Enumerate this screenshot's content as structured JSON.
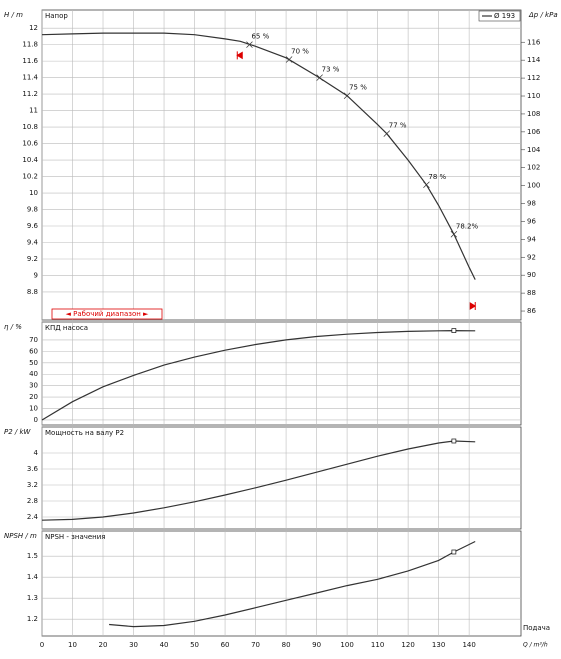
{
  "chart_data": [
    {
      "type": "line",
      "title": "Напор",
      "ylabel": "H / m",
      "y2label": "Δp / kPa",
      "x": [
        0,
        10,
        20,
        30,
        40,
        50,
        60,
        65,
        70,
        80,
        90,
        100,
        110,
        113,
        120,
        126,
        130,
        135,
        140,
        142
      ],
      "series": [
        {
          "name": "Ø 193",
          "color": "#333333",
          "values": [
            11.92,
            11.93,
            11.94,
            11.94,
            11.94,
            11.92,
            11.87,
            11.84,
            11.78,
            11.64,
            11.42,
            11.18,
            10.83,
            10.72,
            10.4,
            10.1,
            9.85,
            9.5,
            9.1,
            8.95
          ]
        }
      ],
      "xlim": [
        0,
        157
      ],
      "xticks": [
        0,
        10,
        20,
        30,
        40,
        50,
        60,
        70,
        80,
        90,
        100,
        110,
        120,
        130,
        140
      ],
      "ylim": [
        8.46,
        12.22
      ],
      "yticks": [
        8.8,
        9,
        9.2,
        9.4,
        9.6,
        9.8,
        10,
        10.2,
        10.4,
        10.6,
        10.8,
        11,
        11.2,
        11.4,
        11.6,
        11.8,
        12
      ],
      "y2lim": [
        85.0,
        119.6
      ],
      "y2ticks": [
        86,
        88,
        90,
        92,
        94,
        96,
        98,
        100,
        102,
        104,
        106,
        108,
        110,
        112,
        114,
        116
      ],
      "annotations": [
        {
          "text": "65 %",
          "x": 68,
          "y": 11.8
        },
        {
          "text": "70 %",
          "x": 81,
          "y": 11.62
        },
        {
          "text": "73 %",
          "x": 91,
          "y": 11.4
        },
        {
          "text": "75 %",
          "x": 100,
          "y": 11.18
        },
        {
          "text": "77 %",
          "x": 113,
          "y": 10.72
        },
        {
          "text": "78 %",
          "x": 126,
          "y": 10.1
        },
        {
          "text": "78.2%",
          "x": 135,
          "y": 9.5
        }
      ],
      "operating_range": [
        64,
        142
      ],
      "range_label": "◄ Рабочий диапазон ►",
      "legend": "upper right",
      "grid": true
    },
    {
      "type": "line",
      "title": "КПД насоса",
      "ylabel": "η / %",
      "x": [
        0,
        10,
        20,
        30,
        40,
        50,
        60,
        70,
        80,
        90,
        100,
        110,
        120,
        130,
        135,
        142
      ],
      "series": [
        {
          "name": "η",
          "color": "#333333",
          "values": [
            0,
            16,
            29,
            39,
            48,
            55,
            61,
            66,
            70,
            73,
            75,
            76.5,
            77.5,
            78,
            78.2,
            78
          ]
        }
      ],
      "xlim": [
        0,
        157
      ],
      "xticks": [
        0,
        10,
        20,
        30,
        40,
        50,
        60,
        70,
        80,
        90,
        100,
        110,
        120,
        130,
        140
      ],
      "ylim": [
        -4.4,
        85.7
      ],
      "yticks": [
        0,
        10,
        20,
        30,
        40,
        50,
        60,
        70
      ],
      "duty_point": [
        135,
        78.2
      ],
      "grid": true
    },
    {
      "type": "line",
      "title": "Мощность на валу P2",
      "ylabel": "P2 / kW",
      "x": [
        0,
        10,
        20,
        30,
        40,
        50,
        60,
        70,
        80,
        90,
        100,
        110,
        120,
        130,
        135,
        142
      ],
      "series": [
        {
          "name": "P2",
          "color": "#333333",
          "values": [
            2.32,
            2.34,
            2.4,
            2.5,
            2.63,
            2.78,
            2.95,
            3.13,
            3.32,
            3.52,
            3.72,
            3.92,
            4.1,
            4.25,
            4.3,
            4.28
          ]
        }
      ],
      "xlim": [
        0,
        157
      ],
      "xticks": [
        0,
        10,
        20,
        30,
        40,
        50,
        60,
        70,
        80,
        90,
        100,
        110,
        120,
        130,
        140
      ],
      "ylim": [
        2.1,
        4.65
      ],
      "yticks": [
        2.4,
        2.8,
        3.2,
        3.6,
        4
      ],
      "duty_point": [
        135,
        4.3
      ],
      "grid": true
    },
    {
      "type": "line",
      "title": "NPSH - значения",
      "ylabel": "NPSH / m",
      "xlabel": "Q / m³/h",
      "x_caption": "Подача",
      "x": [
        22,
        30,
        40,
        50,
        60,
        70,
        80,
        90,
        100,
        110,
        120,
        130,
        135,
        142
      ],
      "series": [
        {
          "name": "NPSH",
          "color": "#333333",
          "values": [
            1.175,
            1.165,
            1.17,
            1.19,
            1.22,
            1.255,
            1.29,
            1.325,
            1.36,
            1.39,
            1.43,
            1.48,
            1.52,
            1.57
          ]
        }
      ],
      "xlim": [
        0,
        157
      ],
      "xticks": [
        0,
        10,
        20,
        30,
        40,
        50,
        60,
        70,
        80,
        90,
        100,
        110,
        120,
        130,
        140
      ],
      "ylim": [
        1.12,
        1.62
      ],
      "yticks": [
        1.2,
        1.3,
        1.4,
        1.5
      ],
      "duty_point": [
        135,
        1.52
      ],
      "grid": true
    }
  ]
}
